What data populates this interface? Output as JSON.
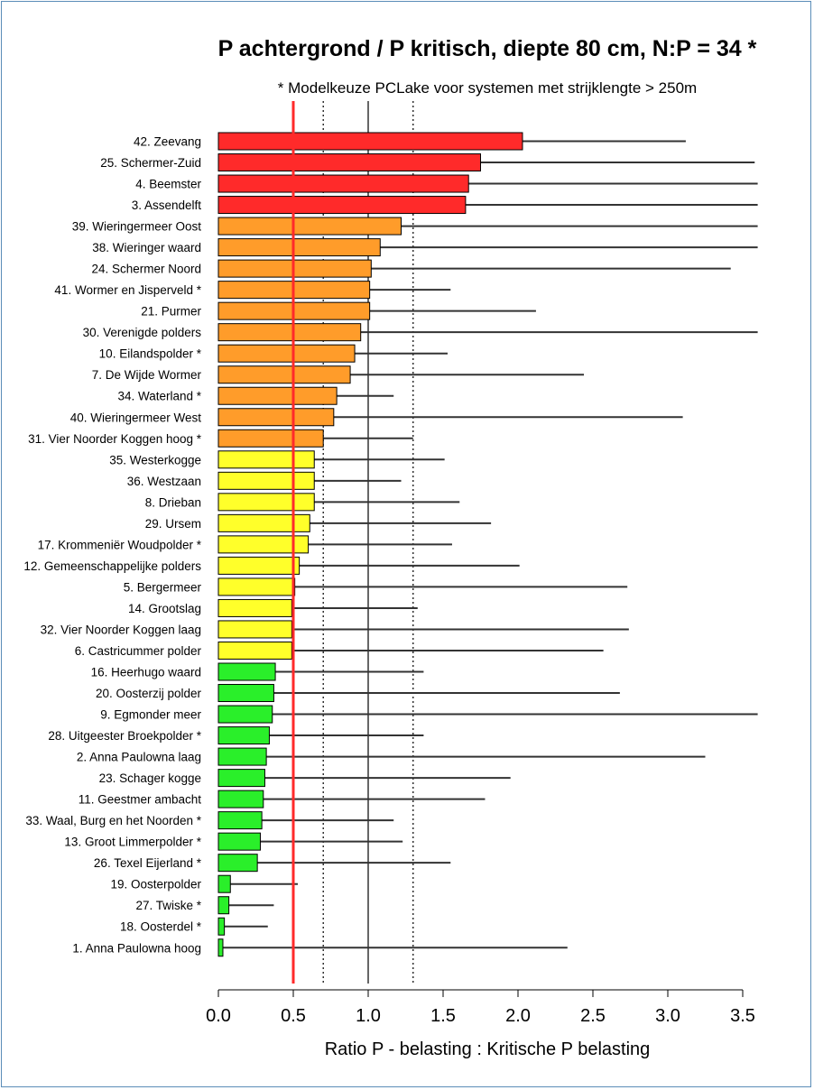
{
  "chart_data": {
    "type": "bar",
    "orientation": "horizontal",
    "title": "P achtergrond / P kritisch, diepte 80 cm, N:P = 34 *",
    "subtitle": "* Modelkeuze PCLake voor systemen met strijklengte > 250m",
    "xlabel": "Ratio P - belasting : Kritische P belasting",
    "xlim": [
      0,
      3.6
    ],
    "xticks": [
      "0.0",
      "0.5",
      "1.0",
      "1.5",
      "2.0",
      "2.5",
      "3.0",
      "3.5"
    ],
    "reference_lines": [
      {
        "x": 0.5,
        "style": "solid",
        "color": "#ff2a2a"
      },
      {
        "x": 0.7,
        "style": "dotted",
        "color": "#000000"
      },
      {
        "x": 1.0,
        "style": "solid",
        "color": "#000000"
      },
      {
        "x": 1.3,
        "style": "dotted",
        "color": "#000000"
      }
    ],
    "colors": {
      "red": "#ff2a2a",
      "orange": "#ff9c2a",
      "yellow": "#ffff2a",
      "green": "#2aef2a"
    },
    "categories": [
      "42. Zeevang",
      "25. Schermer-Zuid",
      "4. Beemster",
      "3. Assendelft",
      "39. Wieringermeer Oost",
      "38. Wieringer waard",
      "24. Schermer Noord",
      "41. Wormer en Jisperveld *",
      "21. Purmer",
      "30. Verenigde polders",
      "10. Eilandspolder *",
      "7. De Wijde Wormer",
      "34. Waterland *",
      "40. Wieringermeer West",
      "31. Vier Noorder Koggen hoog *",
      "35. Westerkogge",
      "36. Westzaan",
      "8. Drieban",
      "29. Ursem",
      "17. Krommeniër Woudpolder *",
      "12. Gemeenschappelijke polders",
      "5. Bergermeer",
      "14. Grootslag",
      "32. Vier Noorder Koggen laag",
      "6. Castricummer polder",
      "16. Heerhugo waard",
      "20. Oosterzij polder",
      "9. Egmonder meer",
      "28. Uitgeester Broekpolder *",
      "2. Anna Paulowna laag",
      "23. Schager kogge",
      "11. Geestmer ambacht",
      "33. Waal, Burg en het Noorden *",
      "13. Groot Limmerpolder *",
      "26. Texel Eijerland *",
      "19. Oosterpolder",
      "27. Twiske *",
      "18. Oosterdel *",
      "1. Anna Paulowna hoog"
    ],
    "values": [
      2.03,
      1.75,
      1.67,
      1.65,
      1.22,
      1.08,
      1.02,
      1.01,
      1.01,
      0.95,
      0.91,
      0.88,
      0.79,
      0.77,
      0.7,
      0.64,
      0.64,
      0.64,
      0.61,
      0.6,
      0.54,
      0.51,
      0.49,
      0.49,
      0.49,
      0.38,
      0.37,
      0.36,
      0.34,
      0.32,
      0.31,
      0.3,
      0.29,
      0.28,
      0.26,
      0.08,
      0.07,
      0.04,
      0.03
    ],
    "upper": [
      3.12,
      3.58,
      3.6,
      3.6,
      3.6,
      3.6,
      3.42,
      1.55,
      2.12,
      3.6,
      1.53,
      2.44,
      1.17,
      3.1,
      1.3,
      1.51,
      1.22,
      1.61,
      1.82,
      1.56,
      2.01,
      2.73,
      1.33,
      2.74,
      2.57,
      1.37,
      2.68,
      3.6,
      1.37,
      3.25,
      1.95,
      1.78,
      1.17,
      1.23,
      1.55,
      0.53,
      0.37,
      0.33,
      2.33
    ],
    "bar_colors": [
      "red",
      "red",
      "red",
      "red",
      "orange",
      "orange",
      "orange",
      "orange",
      "orange",
      "orange",
      "orange",
      "orange",
      "orange",
      "orange",
      "orange",
      "yellow",
      "yellow",
      "yellow",
      "yellow",
      "yellow",
      "yellow",
      "yellow",
      "yellow",
      "yellow",
      "yellow",
      "green",
      "green",
      "green",
      "green",
      "green",
      "green",
      "green",
      "green",
      "green",
      "green",
      "green",
      "green",
      "green",
      "green"
    ]
  }
}
